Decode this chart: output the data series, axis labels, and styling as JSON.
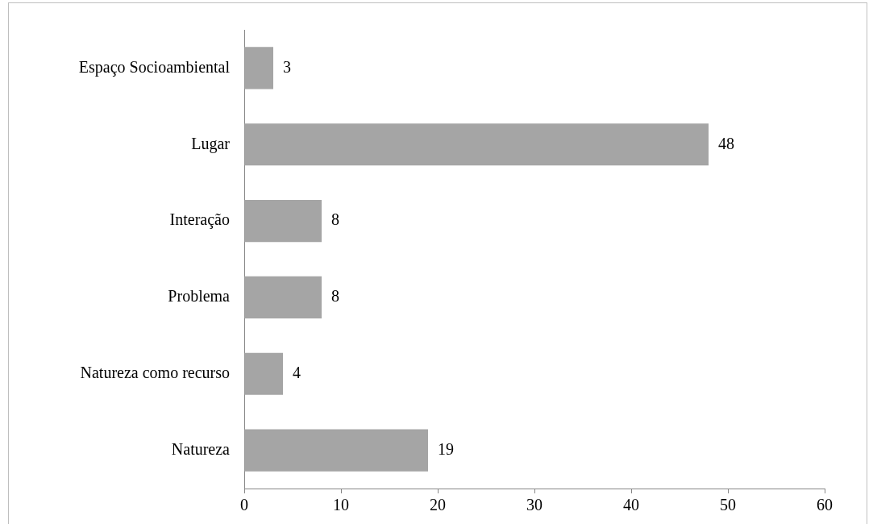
{
  "chart_data": {
    "type": "bar",
    "orientation": "horizontal",
    "categories": [
      "Espaço Socioambiental",
      "Lugar",
      "Interação",
      "Problema",
      "Natureza como recurso",
      "Natureza"
    ],
    "values": [
      3,
      48,
      8,
      8,
      4,
      19
    ],
    "color": "#a5a5a5",
    "xlim": [
      0,
      60
    ],
    "xticks": [
      0,
      10,
      20,
      30,
      40,
      50,
      60
    ],
    "data_labels": true,
    "legend": false
  }
}
